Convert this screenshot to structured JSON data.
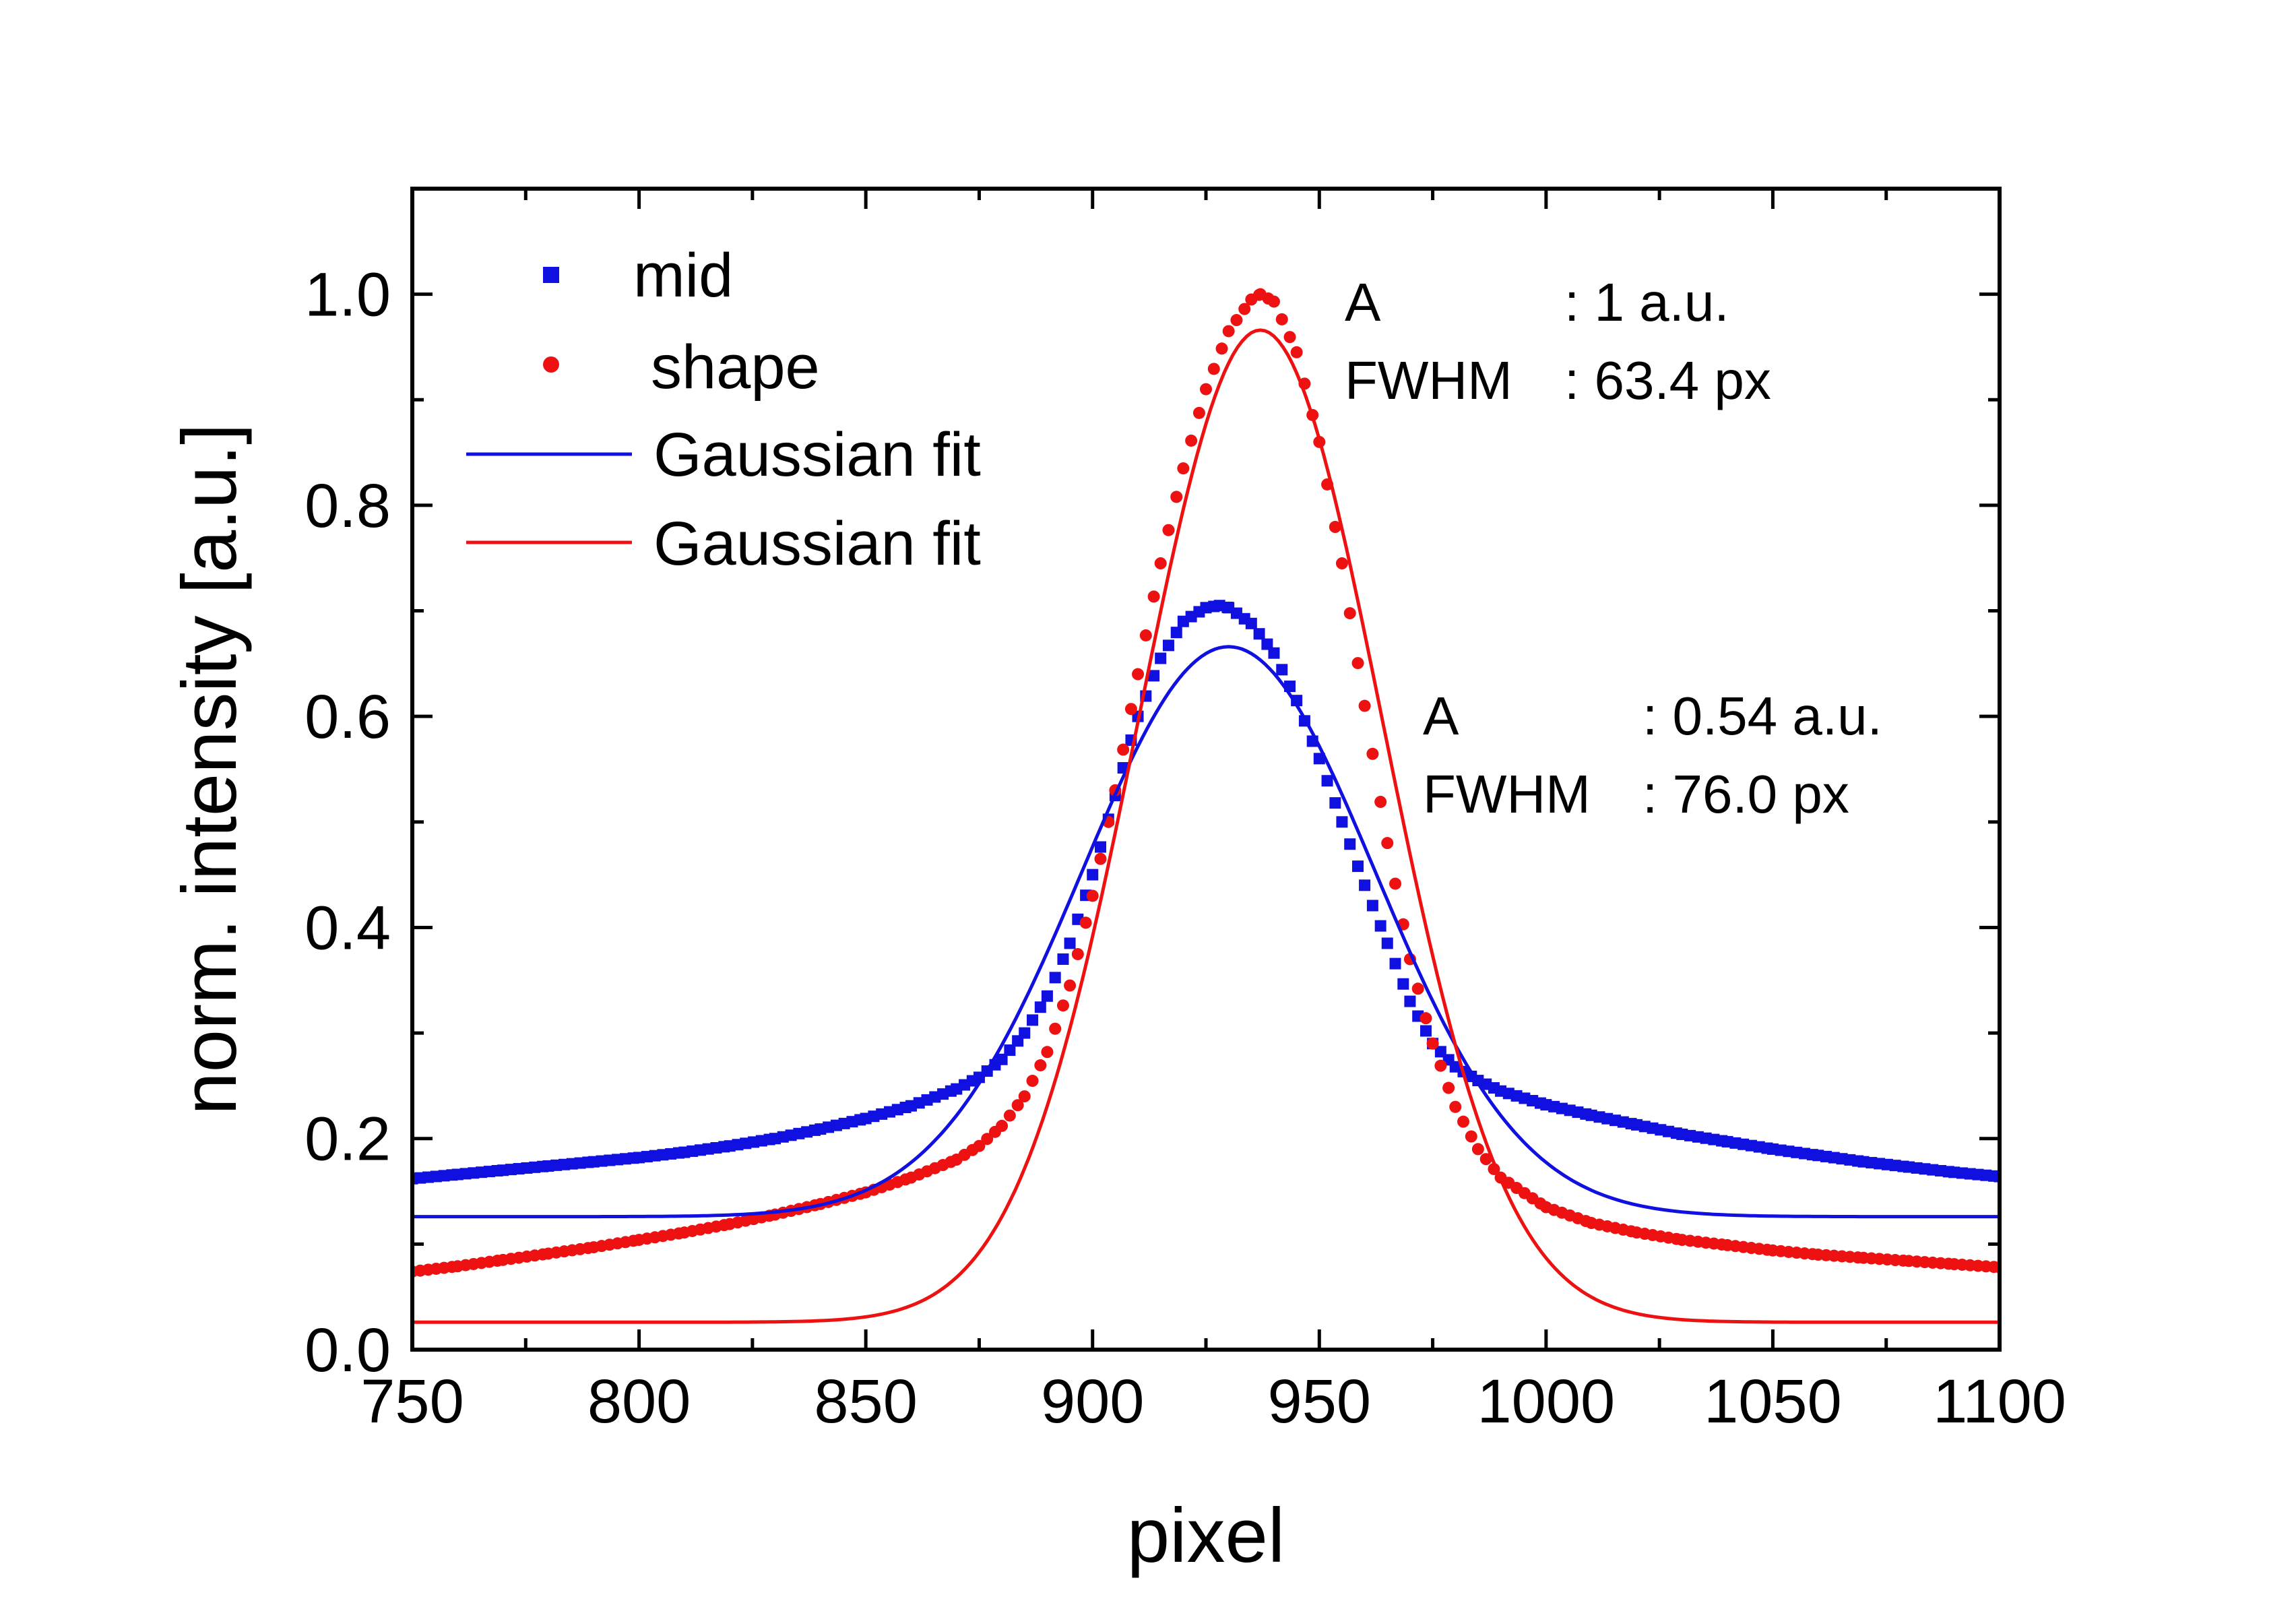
{
  "chart_data": {
    "type": "scatter",
    "title": "",
    "xlabel": "pixel",
    "ylabel": "norm. intensity [a.u.]",
    "xlim": [
      750,
      1100
    ],
    "ylim": [
      0.0,
      1.1
    ],
    "x_ticks": [
      750,
      800,
      850,
      900,
      950,
      1000,
      1050,
      1100
    ],
    "x_tick_labels": [
      "750",
      "800",
      "850",
      "900",
      "950",
      "1000",
      "1050",
      "1100"
    ],
    "y_ticks": [
      0.0,
      0.2,
      0.4,
      0.6,
      0.8,
      1.0
    ],
    "y_tick_labels": [
      "0.0",
      "0.2",
      "0.4",
      "0.6",
      "0.8",
      "1.0"
    ],
    "grid": false,
    "legend_position": "top-left",
    "series": [
      {
        "name": "mid",
        "kind": "markers",
        "marker": "square",
        "color": "#1010e0",
        "x": [
          750,
          760,
          770,
          780,
          790,
          800,
          810,
          820,
          830,
          840,
          850,
          860,
          870,
          875,
          880,
          885,
          890,
          895,
          900,
          905,
          910,
          915,
          920,
          925,
          928,
          930,
          935,
          940,
          945,
          950,
          955,
          960,
          965,
          970,
          975,
          980,
          985,
          990,
          1000,
          1010,
          1020,
          1030,
          1040,
          1050,
          1060,
          1070,
          1080,
          1090,
          1100
        ],
        "y": [
          0.162,
          0.166,
          0.17,
          0.174,
          0.178,
          0.182,
          0.187,
          0.193,
          0.2,
          0.209,
          0.219,
          0.231,
          0.247,
          0.258,
          0.275,
          0.3,
          0.335,
          0.385,
          0.45,
          0.525,
          0.6,
          0.655,
          0.69,
          0.703,
          0.705,
          0.703,
          0.688,
          0.66,
          0.615,
          0.56,
          0.5,
          0.44,
          0.385,
          0.33,
          0.29,
          0.268,
          0.255,
          0.245,
          0.232,
          0.222,
          0.213,
          0.204,
          0.197,
          0.19,
          0.184,
          0.178,
          0.173,
          0.168,
          0.164
        ]
      },
      {
        "name": "shape",
        "kind": "markers",
        "marker": "circle",
        "color": "#ee1111",
        "x": [
          750,
          760,
          770,
          780,
          790,
          800,
          810,
          820,
          830,
          840,
          850,
          860,
          870,
          875,
          880,
          885,
          890,
          895,
          900,
          905,
          910,
          915,
          920,
          925,
          930,
          935,
          937,
          940,
          945,
          950,
          955,
          960,
          965,
          970,
          975,
          980,
          985,
          990,
          1000,
          1010,
          1020,
          1030,
          1040,
          1050,
          1060,
          1070,
          1080,
          1090,
          1100
        ],
        "y": [
          0.074,
          0.079,
          0.085,
          0.091,
          0.097,
          0.104,
          0.111,
          0.119,
          0.128,
          0.138,
          0.149,
          0.163,
          0.18,
          0.193,
          0.212,
          0.24,
          0.282,
          0.345,
          0.43,
          0.53,
          0.64,
          0.745,
          0.835,
          0.91,
          0.965,
          0.995,
          1.0,
          0.993,
          0.945,
          0.86,
          0.745,
          0.61,
          0.48,
          0.37,
          0.29,
          0.23,
          0.19,
          0.163,
          0.135,
          0.12,
          0.111,
          0.104,
          0.099,
          0.094,
          0.09,
          0.087,
          0.084,
          0.081,
          0.078
        ]
      },
      {
        "name": "Gaussian fit",
        "kind": "gaussian",
        "color": "#1010e0",
        "baseline": 0.126,
        "amplitude": 0.54,
        "center": 930,
        "fwhm": 76.0
      },
      {
        "name": "Gaussian fit",
        "kind": "gaussian",
        "color": "#ee1111",
        "baseline": 0.026,
        "amplitude": 0.94,
        "center": 937,
        "fwhm": 63.4
      }
    ],
    "annotations": [
      {
        "lines": [
          {
            "key": "A",
            "value": ": 1 a.u."
          },
          {
            "key": "FWHM",
            "value": ": 63.4 px"
          }
        ]
      },
      {
        "lines": [
          {
            "key": "A",
            "value": ": 0.54 a.u."
          },
          {
            "key": "FWHM",
            "value": ": 76.0 px"
          }
        ]
      }
    ]
  }
}
